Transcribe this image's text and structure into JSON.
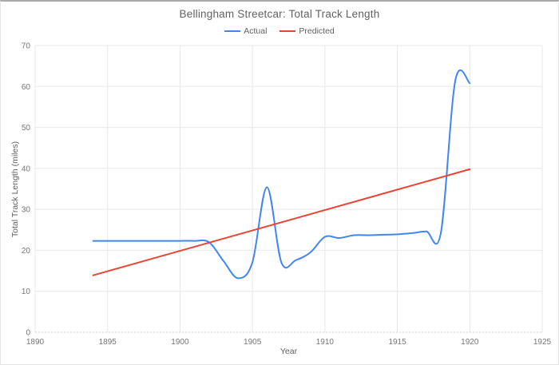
{
  "chart_data": {
    "type": "line",
    "title": "Bellingham Streetcar: Total Track Length",
    "xlabel": "Year",
    "ylabel": "Total Track Length (miles)",
    "xlim": [
      1890,
      1925
    ],
    "ylim": [
      0,
      70
    ],
    "x_ticks": [
      1890,
      1895,
      1900,
      1905,
      1910,
      1915,
      1920,
      1925
    ],
    "y_ticks": [
      0,
      10,
      20,
      30,
      40,
      50,
      60,
      70
    ],
    "grid": true,
    "legend_position": "top-center",
    "colors": {
      "gridline": "#e8e8e8",
      "baseline": "#cccccc",
      "tick_text": "#757575",
      "title_text": "#616161"
    },
    "series": [
      {
        "name": "Actual",
        "color": "#4285F4",
        "smooth": true,
        "points": [
          [
            1894,
            22.3
          ],
          [
            1895,
            22.3
          ],
          [
            1896,
            22.3
          ],
          [
            1897,
            22.3
          ],
          [
            1898,
            22.3
          ],
          [
            1899,
            22.3
          ],
          [
            1900,
            22.3
          ],
          [
            1901,
            22.3
          ],
          [
            1902,
            22.0
          ],
          [
            1903,
            17.4
          ],
          [
            1904,
            13.2
          ],
          [
            1905,
            17.1
          ],
          [
            1906,
            35.4
          ],
          [
            1907,
            17.0
          ],
          [
            1908,
            17.6
          ],
          [
            1909,
            19.5
          ],
          [
            1910,
            23.3
          ],
          [
            1911,
            23.0
          ],
          [
            1912,
            23.7
          ],
          [
            1913,
            23.7
          ],
          [
            1914,
            23.8
          ],
          [
            1915,
            23.9
          ],
          [
            1916,
            24.2
          ],
          [
            1917,
            24.6
          ],
          [
            1918,
            24.2
          ],
          [
            1919,
            61.4
          ],
          [
            1920,
            60.8
          ]
        ]
      },
      {
        "name": "Predicted",
        "color": "#EA4335",
        "smooth": false,
        "points": [
          [
            1894,
            13.9
          ],
          [
            1920,
            39.8
          ]
        ]
      }
    ]
  }
}
